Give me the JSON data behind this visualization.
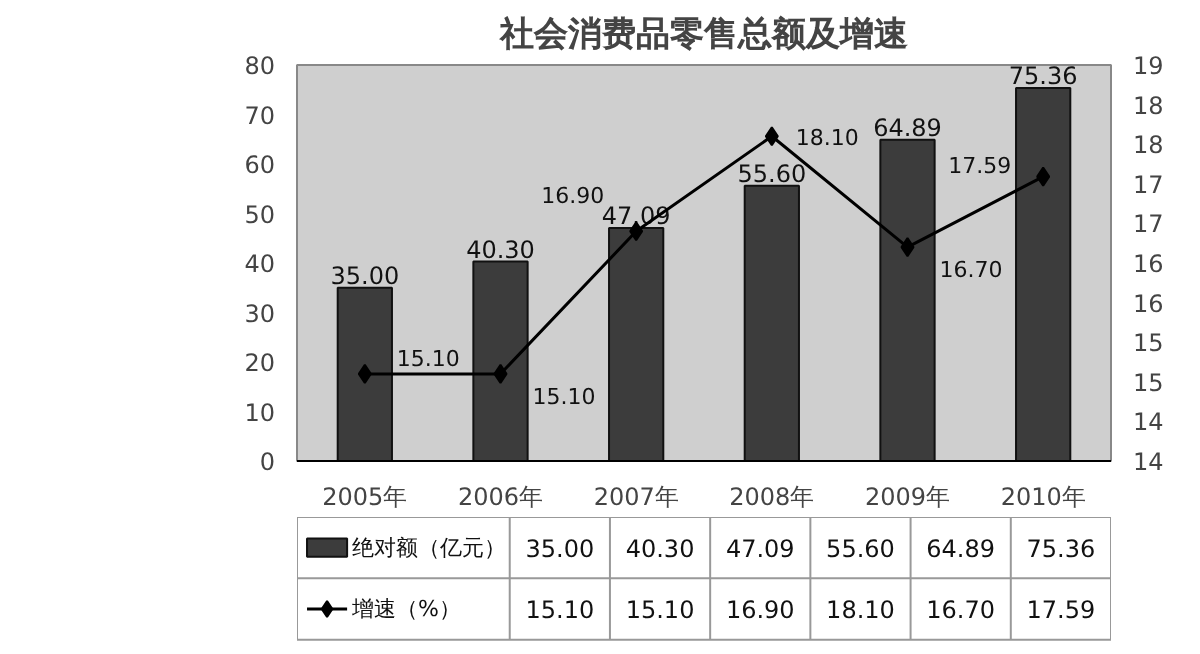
{
  "chart_data": {
    "type": "bar",
    "title": "社会消费品零售总额及增速",
    "categories": [
      "2005年",
      "2006年",
      "2007年",
      "2008年",
      "2009年",
      "2010年"
    ],
    "series": [
      {
        "name": "绝对额（亿元）",
        "color": "#3c3c3c",
        "values": [
          35.0,
          40.3,
          47.09,
          55.6,
          64.89,
          75.36
        ],
        "value_labels": [
          "35.00",
          "40.30",
          "47.09",
          "55.60",
          "64.89",
          "75.36"
        ]
      },
      {
        "name": "增速（%）",
        "type": "line",
        "axis": "y2",
        "color": "#000000",
        "marker": "diamond",
        "values": [
          15.1,
          15.1,
          16.9,
          18.1,
          16.7,
          17.59
        ],
        "value_labels": [
          "15.10",
          "15.10",
          "16.90",
          "18.10",
          "16.70",
          "17.59"
        ]
      }
    ],
    "ylim": [
      0,
      80
    ],
    "yticks": [
      0,
      10,
      20,
      30,
      40,
      50,
      60,
      70,
      80
    ],
    "y2lim": [
      14,
      19
    ],
    "y2ticks": [
      14,
      {
        "value": 14.5,
        "label": "14"
      },
      15,
      {
        "value": 15.5,
        "label": "15"
      },
      16,
      {
        "value": 16.5,
        "label": "16"
      },
      17,
      {
        "value": 17.5,
        "label": "17"
      },
      18,
      {
        "value": 18.5,
        "label": "18"
      },
      19
    ],
    "legend": "bottom",
    "grid": false
  }
}
